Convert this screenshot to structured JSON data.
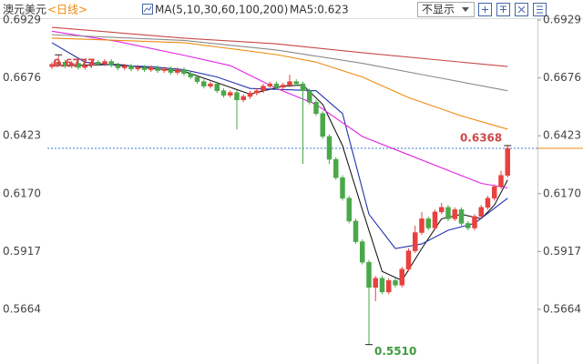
{
  "chart_data": {
    "type": "candlestick",
    "title": "澳元美元",
    "period": "<日线>",
    "ma_legend": "MA(5,10,30,60,100,200)",
    "ma_readout": "MA5:0.623",
    "dropdown": "不显示",
    "up_color": "#e8413f",
    "down_color": "#4aa84a",
    "open": [
      0.6725,
      0.6735,
      0.6745,
      0.6728,
      0.674,
      0.6722,
      0.673,
      0.6745,
      0.6738,
      0.6748,
      0.6732,
      0.672,
      0.6728,
      0.6715,
      0.6722,
      0.6712,
      0.672,
      0.6708,
      0.6715,
      0.67,
      0.6712,
      0.6695,
      0.668,
      0.666,
      0.664,
      0.665,
      0.662,
      0.66,
      0.6612,
      0.658,
      0.6595,
      0.661,
      0.662,
      0.664,
      0.665,
      0.6635,
      0.6645,
      0.666,
      0.665,
      0.662,
      0.657,
      0.652,
      0.642,
      0.632,
      0.624,
      0.615,
      0.605,
      0.596,
      0.587,
      0.576,
      0.58,
      0.574,
      0.579,
      0.577,
      0.584,
      0.592,
      0.6,
      0.606,
      0.602,
      0.609,
      0.611,
      0.606,
      0.61,
      0.604,
      0.602,
      0.607,
      0.611,
      0.615,
      0.62,
      0.625
    ],
    "high": [
      0.6745,
      0.6777,
      0.6755,
      0.675,
      0.675,
      0.674,
      0.6755,
      0.6755,
      0.6758,
      0.6758,
      0.6742,
      0.6738,
      0.6738,
      0.6732,
      0.6732,
      0.673,
      0.673,
      0.6725,
      0.6725,
      0.6722,
      0.6722,
      0.6705,
      0.669,
      0.667,
      0.666,
      0.666,
      0.663,
      0.6622,
      0.6622,
      0.6605,
      0.662,
      0.663,
      0.665,
      0.666,
      0.666,
      0.6655,
      0.669,
      0.667,
      0.666,
      0.663,
      0.658,
      0.653,
      0.643,
      0.633,
      0.625,
      0.616,
      0.606,
      0.597,
      0.588,
      0.581,
      0.581,
      0.58,
      0.58,
      0.585,
      0.593,
      0.603,
      0.609,
      0.607,
      0.61,
      0.613,
      0.612,
      0.611,
      0.611,
      0.605,
      0.608,
      0.612,
      0.616,
      0.621,
      0.627,
      0.638
    ],
    "low": [
      0.6715,
      0.6725,
      0.6718,
      0.6718,
      0.6712,
      0.6712,
      0.672,
      0.6728,
      0.6728,
      0.6722,
      0.671,
      0.671,
      0.6705,
      0.6705,
      0.6702,
      0.6702,
      0.6698,
      0.6698,
      0.669,
      0.669,
      0.6685,
      0.667,
      0.665,
      0.663,
      0.663,
      0.661,
      0.659,
      0.659,
      0.645,
      0.657,
      0.6585,
      0.66,
      0.661,
      0.663,
      0.6625,
      0.6625,
      0.6635,
      0.664,
      0.63,
      0.656,
      0.651,
      0.641,
      0.63,
      0.623,
      0.614,
      0.604,
      0.595,
      0.586,
      0.551,
      0.57,
      0.573,
      0.573,
      0.576,
      0.576,
      0.583,
      0.591,
      0.599,
      0.601,
      0.601,
      0.608,
      0.605,
      0.605,
      0.603,
      0.601,
      0.601,
      0.606,
      0.61,
      0.614,
      0.619,
      0.624
    ],
    "close": [
      0.6735,
      0.6745,
      0.6728,
      0.674,
      0.6722,
      0.673,
      0.6745,
      0.6738,
      0.6748,
      0.6732,
      0.672,
      0.6728,
      0.6715,
      0.6722,
      0.6712,
      0.672,
      0.6708,
      0.6715,
      0.67,
      0.6712,
      0.6695,
      0.668,
      0.666,
      0.664,
      0.665,
      0.662,
      0.66,
      0.6612,
      0.658,
      0.6595,
      0.661,
      0.662,
      0.664,
      0.665,
      0.6635,
      0.6645,
      0.666,
      0.665,
      0.662,
      0.657,
      0.652,
      0.642,
      0.632,
      0.624,
      0.615,
      0.605,
      0.596,
      0.587,
      0.576,
      0.58,
      0.574,
      0.579,
      0.577,
      0.584,
      0.592,
      0.6,
      0.606,
      0.602,
      0.609,
      0.611,
      0.606,
      0.61,
      0.604,
      0.602,
      0.607,
      0.611,
      0.615,
      0.62,
      0.625,
      0.6368
    ],
    "series": [
      {
        "color": "#1a1a1a",
        "x": [
          0,
          5,
          10,
          15,
          20,
          25,
          30,
          35,
          38,
          41,
          44,
          47,
          50,
          53,
          56,
          59,
          62,
          65,
          67,
          69
        ],
        "values": [
          0.673,
          0.6732,
          0.6735,
          0.6718,
          0.6705,
          0.6655,
          0.6605,
          0.664,
          0.6645,
          0.656,
          0.638,
          0.61,
          0.583,
          0.579,
          0.593,
          0.606,
          0.608,
          0.606,
          0.612,
          0.623
        ]
      },
      {
        "color": "#2233aa",
        "x": [
          0,
          5,
          10,
          15,
          20,
          25,
          30,
          35,
          40,
          44,
          48,
          52,
          56,
          60,
          64,
          69
        ],
        "values": [
          0.683,
          0.6745,
          0.673,
          0.6725,
          0.6712,
          0.668,
          0.663,
          0.6625,
          0.662,
          0.652,
          0.608,
          0.593,
          0.595,
          0.601,
          0.604,
          0.615
        ]
      },
      {
        "color": "#e024e0",
        "x": [
          0,
          10,
          20,
          27,
          34,
          40,
          47,
          54,
          61,
          65,
          69
        ],
        "values": [
          0.688,
          0.6835,
          0.6775,
          0.673,
          0.663,
          0.656,
          0.642,
          0.634,
          0.626,
          0.6215,
          0.6195
        ]
      },
      {
        "color": "#f08a10",
        "x": [
          0,
          20,
          34,
          40,
          47,
          54,
          62,
          69
        ],
        "values": [
          0.685,
          0.683,
          0.6778,
          0.6745,
          0.668,
          0.659,
          0.651,
          0.6452
        ]
      },
      {
        "color": "#8a8a8a",
        "x": [
          0,
          20,
          34,
          47,
          58,
          69
        ],
        "values": [
          0.6865,
          0.684,
          0.6798,
          0.674,
          0.668,
          0.662
        ]
      },
      {
        "color": "#c84848",
        "x": [
          0,
          20,
          34,
          47,
          69
        ],
        "values": [
          0.6897,
          0.685,
          0.6825,
          0.6786,
          0.6726
        ]
      }
    ],
    "ylim": [
      0.5445,
      0.6957
    ],
    "yticks": [
      0.6929,
      0.6676,
      0.6423,
      {
        "value": 0.617,
        "label": "0.6170"
      },
      0.5917,
      0.5664
    ],
    "grid": false,
    "annotations": {
      "high": 0.6777,
      "low": {
        "value": 0.551,
        "label": "0.5510"
      },
      "last": 0.6368
    }
  }
}
